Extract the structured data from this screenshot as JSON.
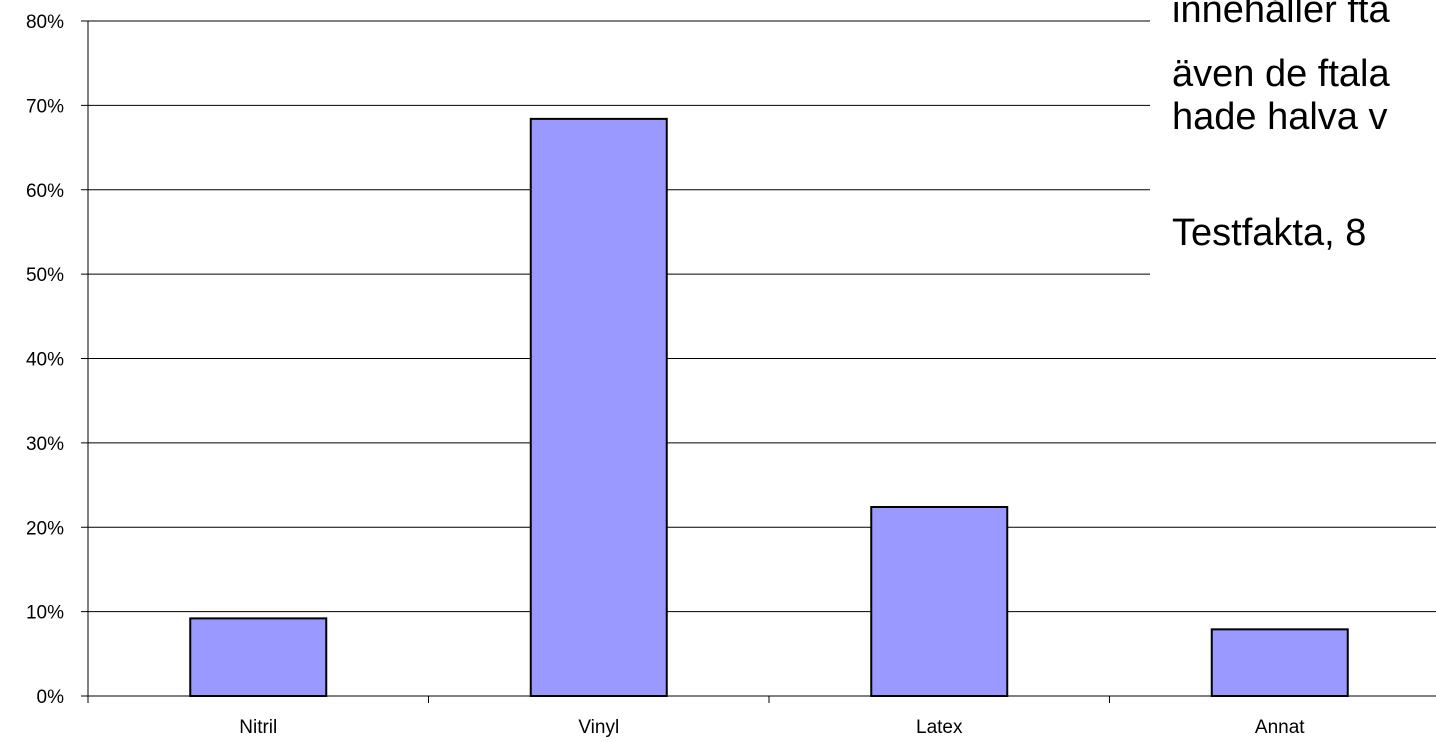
{
  "chart_data": {
    "type": "bar",
    "categories": [
      "Nitril",
      "Vinyl",
      "Latex",
      "Annat"
    ],
    "values": [
      9.2,
      68.4,
      22.4,
      7.9
    ],
    "ylim": [
      0,
      80
    ],
    "yticks": [
      "0%",
      "10%",
      "20%",
      "30%",
      "40%",
      "50%",
      "60%",
      "70%",
      "80%"
    ],
    "grid": true,
    "bar_color": "#9999ff",
    "bar_stroke": "#000000"
  },
  "overlay_text": {
    "line1": "innehåller fta",
    "line2": "även de ftala",
    "line3": "hade halva v",
    "line4": "Testfakta, 8"
  }
}
